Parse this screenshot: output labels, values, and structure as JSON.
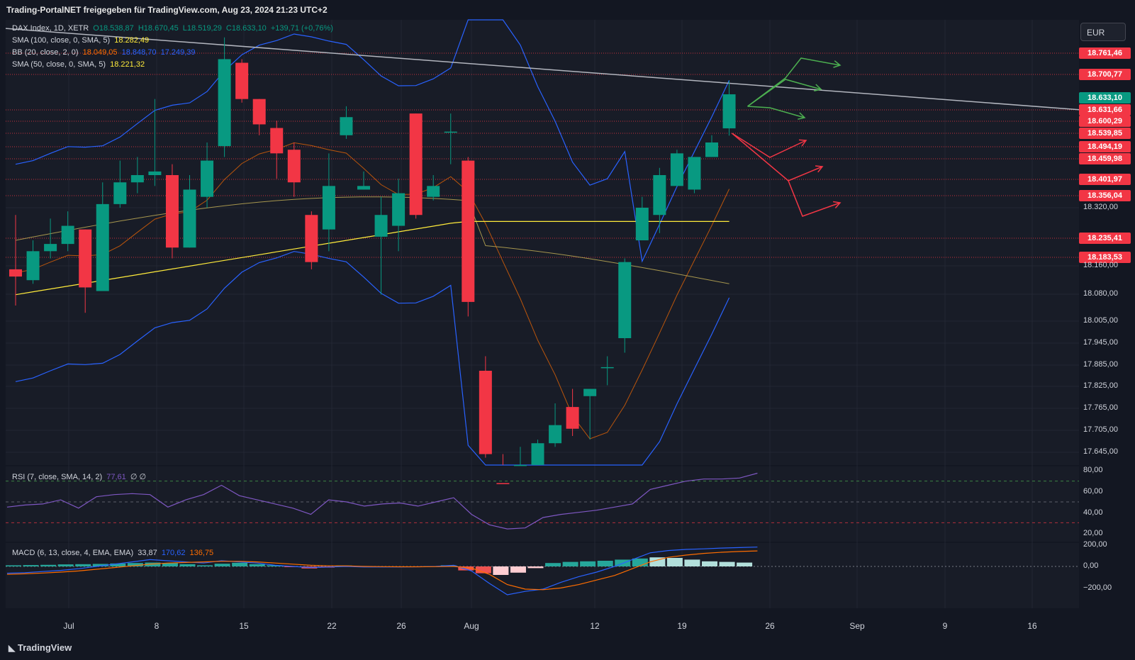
{
  "header": {
    "title": "Trading-PortalNET freigegeben für TradingView.com, Aug 23, 2024 21:23 UTC+2"
  },
  "currency_button": "EUR",
  "legend": {
    "symbol": "DAX Index, 1D, XETR",
    "ohlc": [
      "O18.538,87",
      "H18.670,45",
      "L18.519,29",
      "C18.633,10",
      "+139,71 (+0,76%)"
    ],
    "sma100": {
      "label": "SMA (100, close, 0, SMA, 5)",
      "value": "18.282,49"
    },
    "bb": {
      "label": "BB (20, close, 2, 0)",
      "basis": "18.049,05",
      "upper": "18.848,70",
      "lower": "17.249,39"
    },
    "sma50": {
      "label": "SMA (50, close, 0, SMA, 5)",
      "value": "18.221,32"
    },
    "rsi": {
      "label": "RSI (7, close, SMA, 14, 2)",
      "value": "77,61",
      "extra": "∅ ∅"
    },
    "macd": {
      "label": "MACD (6, 13, close, 4, EMA, EMA)",
      "hist": "33,87",
      "macd": "170,62",
      "signal": "136,75"
    }
  },
  "price_labels": [
    {
      "text": "18.761,46",
      "color": "#f23645"
    },
    {
      "text": "18.700,77",
      "color": "#f23645"
    },
    {
      "text": "18.633,10",
      "color": "#089981"
    },
    {
      "text": "18.631,66",
      "color": "#f23645"
    },
    {
      "text": "18.600,29",
      "color": "#f23645"
    },
    {
      "text": "18.539,85",
      "color": "#f23645"
    },
    {
      "text": "18.494,19",
      "color": "#f23645"
    },
    {
      "text": "18.459,98",
      "color": "#f23645"
    },
    {
      "text": "18.401,97",
      "color": "#f23645"
    },
    {
      "text": "18.356,04",
      "color": "#f23645"
    },
    {
      "text": "18.235,41",
      "color": "#f23645"
    },
    {
      "text": "18.183,53",
      "color": "#f23645"
    }
  ],
  "price_axis": [
    "18.320,00",
    "18.160,00",
    "18.080,00",
    "18.005,00",
    "17.945,00",
    "17.885,00",
    "17.825,00",
    "17.765,00",
    "17.705,00",
    "17.645,00"
  ],
  "rsi_axis": [
    "80,00",
    "60,00",
    "40,00",
    "20,00"
  ],
  "macd_axis": [
    "200,00",
    "0,00",
    "−200,00"
  ],
  "x_axis": [
    "Jul",
    "8",
    "15",
    "22",
    "26",
    "Aug",
    "12",
    "19",
    "26",
    "Sep",
    "9",
    "16"
  ],
  "footer": "TradingView",
  "chart_data": {
    "type": "candlestick",
    "title": "DAX Index, 1D, XETR",
    "currency": "EUR",
    "candles": [
      {
        "o": 18150,
        "h": 18300,
        "l": 18050,
        "c": 18130
      },
      {
        "o": 18120,
        "h": 18230,
        "l": 18110,
        "c": 18200
      },
      {
        "o": 18200,
        "h": 18290,
        "l": 18180,
        "c": 18220
      },
      {
        "o": 18220,
        "h": 18310,
        "l": 18200,
        "c": 18270
      },
      {
        "o": 18260,
        "h": 18260,
        "l": 18030,
        "c": 18100
      },
      {
        "o": 18090,
        "h": 18390,
        "l": 18090,
        "c": 18330
      },
      {
        "o": 18330,
        "h": 18450,
        "l": 18320,
        "c": 18390
      },
      {
        "o": 18390,
        "h": 18460,
        "l": 18360,
        "c": 18410
      },
      {
        "o": 18410,
        "h": 18620,
        "l": 18380,
        "c": 18420
      },
      {
        "o": 18410,
        "h": 18440,
        "l": 18180,
        "c": 18210
      },
      {
        "o": 18210,
        "h": 18410,
        "l": 18210,
        "c": 18370
      },
      {
        "o": 18350,
        "h": 18500,
        "l": 18320,
        "c": 18450
      },
      {
        "o": 18490,
        "h": 18790,
        "l": 18460,
        "c": 18730
      },
      {
        "o": 18720,
        "h": 18730,
        "l": 18610,
        "c": 18620
      },
      {
        "o": 18620,
        "h": 18620,
        "l": 18520,
        "c": 18550
      },
      {
        "o": 18540,
        "h": 18560,
        "l": 18400,
        "c": 18470
      },
      {
        "o": 18480,
        "h": 18500,
        "l": 18350,
        "c": 18390
      },
      {
        "o": 18300,
        "h": 18310,
        "l": 18150,
        "c": 18170
      },
      {
        "o": 18260,
        "h": 18470,
        "l": 18200,
        "c": 18380
      },
      {
        "o": 18520,
        "h": 18600,
        "l": 18510,
        "c": 18570
      },
      {
        "o": 18370,
        "h": 18420,
        "l": 18370,
        "c": 18380
      },
      {
        "o": 18240,
        "h": 18350,
        "l": 18080,
        "c": 18300
      },
      {
        "o": 18270,
        "h": 18400,
        "l": 18200,
        "c": 18360
      },
      {
        "o": 18580,
        "h": 18580,
        "l": 18290,
        "c": 18300
      },
      {
        "o": 18350,
        "h": 18410,
        "l": 18340,
        "c": 18380
      },
      {
        "o": 18530,
        "h": 18580,
        "l": 18440,
        "c": 18530
      },
      {
        "o": 18450,
        "h": 18460,
        "l": 18020,
        "c": 18060
      },
      {
        "o": 17870,
        "h": 17910,
        "l": 17630,
        "c": 17640
      },
      {
        "o": 17560,
        "h": 17640,
        "l": 17500,
        "c": 17520
      },
      {
        "o": 17580,
        "h": 17660,
        "l": 17540,
        "c": 17610
      },
      {
        "o": 17610,
        "h": 17680,
        "l": 17550,
        "c": 17670
      },
      {
        "o": 17670,
        "h": 17780,
        "l": 17660,
        "c": 17720
      },
      {
        "o": 17770,
        "h": 17820,
        "l": 17690,
        "c": 17710
      },
      {
        "o": 17800,
        "h": 17820,
        "l": 17680,
        "c": 17820
      },
      {
        "o": 17880,
        "h": 17910,
        "l": 17830,
        "c": 17880
      },
      {
        "o": 17960,
        "h": 18180,
        "l": 17920,
        "c": 18170
      },
      {
        "o": 18230,
        "h": 18350,
        "l": 18230,
        "c": 18320
      },
      {
        "o": 18300,
        "h": 18430,
        "l": 18250,
        "c": 18410
      },
      {
        "o": 18380,
        "h": 18480,
        "l": 18380,
        "c": 18470
      },
      {
        "o": 18370,
        "h": 18460,
        "l": 18360,
        "c": 18460
      },
      {
        "o": 18460,
        "h": 18520,
        "l": 18460,
        "c": 18500
      },
      {
        "o": 18539,
        "h": 18670,
        "l": 18519,
        "c": 18633
      }
    ],
    "lines": {
      "trendline": [
        18760,
        18610
      ],
      "sma100": [
        18080,
        18282
      ],
      "sma50_tail": 18221,
      "bb_upper_last": 18848,
      "bb_lower_last": 17249,
      "bb_basis_last": 18049
    },
    "scenarios": {
      "bullish_color": "#4caf50",
      "bearish_color": "#f23645"
    },
    "rsi": {
      "last": 77.61,
      "bands": [
        70,
        50,
        30
      ]
    },
    "macd": {
      "hist_last": 33.87,
      "macd_last": 170.62,
      "signal_last": 136.75
    }
  }
}
